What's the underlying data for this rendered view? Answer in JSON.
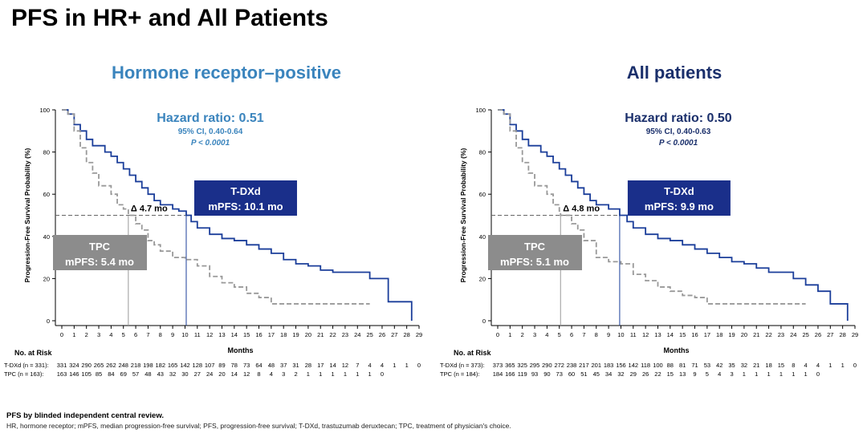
{
  "page_title": "PFS in HR+ and All Patients",
  "footer": {
    "line1": "PFS by blinded independent central review.",
    "line2": "HR, hormone receptor; mPFS, median progression-free survival; PFS, progression-free survival; T-DXd, trastuzumab deruxtecan; TPC, treatment of physician's choice."
  },
  "colors": {
    "tdxd": "#1b3e9a",
    "tpc": "#999999",
    "hr_title": "#3a84bd",
    "all_title": "#1a2f6b",
    "box_tdxd": "#1a2f8a",
    "box_tpc": "#8c8c8c"
  },
  "chart_data": [
    {
      "type": "line",
      "title": "Hormone receptor–positive",
      "ylabel": "Progression-Free Survival Probability (%)",
      "xlabel": "Months",
      "xlim": [
        0,
        29
      ],
      "ylim": [
        0,
        100
      ],
      "xticks": [
        "0",
        "1",
        "2",
        "3",
        "4",
        "5",
        "6",
        "7",
        "8",
        "9",
        "10",
        "11",
        "12",
        "13",
        "14",
        "15",
        "16",
        "17",
        "18",
        "19",
        "20",
        "21",
        "22",
        "23",
        "24",
        "25",
        "26",
        "27",
        "28",
        "29"
      ],
      "yticks": [
        "0",
        "20",
        "40",
        "60",
        "80",
        "100"
      ],
      "hr_label": "Hazard ratio: 0.51",
      "ci": "95% CI, 0.40-0.64",
      "p": "P < 0.0001",
      "delta": "Δ 4.7 mo",
      "tdxd_box": [
        "T-DXd",
        "mPFS: 10.1 mo"
      ],
      "tpc_box": [
        "TPC",
        "mPFS: 5.4 mo"
      ],
      "median_tdxd": 10.1,
      "median_tpc": 5.4,
      "risk_header": "No. at Risk",
      "risk": [
        {
          "label": "T-DXd (n = 331):",
          "values": [
            331,
            324,
            290,
            265,
            262,
            248,
            218,
            198,
            182,
            165,
            142,
            128,
            107,
            89,
            78,
            73,
            64,
            48,
            37,
            31,
            28,
            17,
            14,
            12,
            7,
            4,
            4,
            1,
            1,
            0
          ]
        },
        {
          "label": "TPC (n = 163):",
          "values": [
            163,
            146,
            105,
            85,
            84,
            69,
            57,
            48,
            43,
            32,
            30,
            27,
            24,
            20,
            14,
            12,
            8,
            4,
            3,
            2,
            1,
            1,
            1,
            1,
            1,
            1,
            0
          ]
        }
      ],
      "series": [
        {
          "name": "T-DXd",
          "x": [
            0,
            0.5,
            1,
            1.5,
            2,
            2.5,
            3.5,
            4,
            4.5,
            5,
            5.5,
            6,
            6.5,
            7,
            7.5,
            8,
            9,
            9.5,
            10.1,
            10.5,
            11,
            12,
            13,
            14,
            15,
            16,
            17,
            18,
            19,
            20,
            21,
            22,
            24,
            25,
            26,
            26.5,
            28,
            28.4
          ],
          "y": [
            100,
            98,
            93,
            90,
            86,
            83,
            80,
            78,
            75,
            72,
            69,
            66,
            63,
            60,
            57,
            55,
            53,
            52,
            50,
            47,
            44,
            41,
            39,
            38,
            36,
            34,
            32,
            29,
            27,
            26,
            24,
            23,
            23,
            20,
            20,
            9,
            9,
            0
          ]
        },
        {
          "name": "TPC",
          "x": [
            0,
            0.5,
            1,
            1.5,
            2,
            2.5,
            3,
            4,
            4.5,
            5,
            5.4,
            6,
            6.5,
            7,
            7.5,
            8,
            9,
            10,
            11,
            12,
            13,
            14,
            15,
            16,
            17,
            25
          ],
          "y": [
            100,
            98,
            90,
            82,
            75,
            70,
            64,
            60,
            55,
            53,
            50,
            46,
            43,
            38,
            36,
            33,
            30,
            29,
            26,
            21,
            18,
            16,
            13,
            11,
            8,
            8
          ]
        }
      ]
    },
    {
      "type": "line",
      "title": "All patients",
      "ylabel": "Progression-Free Survival Probability (%)",
      "xlabel": "Months",
      "xlim": [
        0,
        29
      ],
      "ylim": [
        0,
        100
      ],
      "xticks": [
        "0",
        "1",
        "2",
        "3",
        "4",
        "5",
        "6",
        "7",
        "8",
        "9",
        "10",
        "11",
        "12",
        "13",
        "14",
        "15",
        "16",
        "17",
        "18",
        "19",
        "20",
        "21",
        "22",
        "23",
        "24",
        "25",
        "26",
        "27",
        "28",
        "29"
      ],
      "yticks": [
        "0",
        "20",
        "40",
        "60",
        "80",
        "100"
      ],
      "hr_label": "Hazard ratio: 0.50",
      "ci": "95% CI, 0.40-0.63",
      "p": "P < 0.0001",
      "delta": "Δ 4.8 mo",
      "tdxd_box": [
        "T-DXd",
        "mPFS: 9.9 mo"
      ],
      "tpc_box": [
        "TPC",
        "mPFS: 5.1 mo"
      ],
      "median_tdxd": 9.9,
      "median_tpc": 5.1,
      "risk_header": "No. at Risk",
      "risk": [
        {
          "label": "T-DXd (n = 373):",
          "values": [
            373,
            365,
            325,
            295,
            290,
            272,
            238,
            217,
            201,
            183,
            156,
            142,
            118,
            100,
            88,
            81,
            71,
            53,
            42,
            35,
            32,
            21,
            18,
            15,
            8,
            4,
            4,
            1,
            1,
            0
          ]
        },
        {
          "label": "TPC (n = 184):",
          "values": [
            184,
            166,
            119,
            93,
            90,
            73,
            60,
            51,
            45,
            34,
            32,
            29,
            26,
            22,
            15,
            13,
            9,
            5,
            4,
            3,
            1,
            1,
            1,
            1,
            1,
            1,
            0
          ]
        }
      ],
      "series": [
        {
          "name": "T-DXd",
          "x": [
            0,
            0.5,
            1,
            1.5,
            2,
            2.5,
            3.5,
            4,
            4.5,
            5,
            5.5,
            6,
            6.5,
            7,
            7.5,
            8,
            9,
            9.9,
            10.5,
            11,
            12,
            13,
            14,
            15,
            16,
            17,
            18,
            19,
            20,
            21,
            22,
            23,
            24,
            25,
            26,
            27,
            28,
            28.4
          ],
          "y": [
            100,
            98,
            93,
            90,
            86,
            83,
            80,
            78,
            75,
            72,
            69,
            66,
            63,
            60,
            57,
            55,
            53,
            50,
            47,
            44,
            41,
            39,
            38,
            36,
            34,
            32,
            30,
            28,
            27,
            25,
            23,
            23,
            20,
            17,
            14,
            8,
            8,
            0
          ]
        },
        {
          "name": "TPC",
          "x": [
            0,
            0.5,
            1,
            1.5,
            2,
            2.5,
            3,
            4,
            4.5,
            5,
            5.1,
            6,
            6.5,
            7,
            8,
            9,
            10,
            11,
            12,
            13,
            14,
            15,
            16,
            17,
            25
          ],
          "y": [
            100,
            98,
            90,
            82,
            75,
            70,
            64,
            60,
            55,
            52,
            50,
            46,
            43,
            38,
            30,
            28,
            27,
            22,
            19,
            16,
            14,
            12,
            11,
            8,
            8
          ]
        }
      ]
    }
  ]
}
